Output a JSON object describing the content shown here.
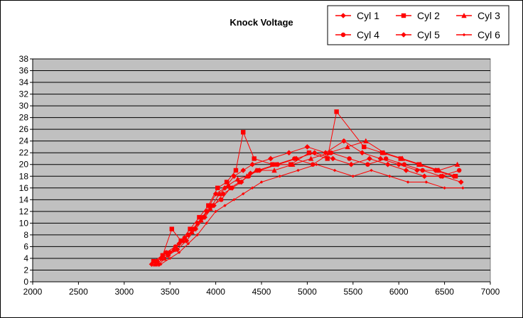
{
  "chart_data": {
    "type": "scatter",
    "title": "Knock Voltage",
    "xlabel": "",
    "ylabel": "",
    "xlim": [
      2000,
      7000
    ],
    "ylim": [
      0,
      38
    ],
    "x_ticks": [
      2000,
      2500,
      3000,
      3500,
      4000,
      4500,
      5000,
      5500,
      6000,
      6500,
      7000
    ],
    "y_ticks": [
      0,
      2,
      4,
      6,
      8,
      10,
      12,
      14,
      16,
      18,
      20,
      22,
      24,
      26,
      28,
      30,
      32,
      34,
      36,
      38
    ],
    "grid": "horizontal",
    "legend_position": "top-right",
    "plot_background": "#c0c0c0",
    "series": [
      {
        "name": "Cyl 1",
        "marker": "diamond",
        "color": "#ff0000",
        "x": [
          3300,
          3400,
          3500,
          3600,
          3700,
          3800,
          3900,
          4000,
          4100,
          4200,
          4300,
          4400,
          4600,
          4800,
          5000,
          5200,
          5400,
          5600,
          5800,
          6000,
          6200,
          6400,
          6600
        ],
        "y": [
          3,
          4,
          5,
          6.5,
          8,
          10,
          12,
          15,
          16,
          18,
          19,
          20,
          21,
          22,
          23,
          22,
          24,
          22,
          21,
          20,
          19,
          19,
          18
        ]
      },
      {
        "name": "Cyl 2",
        "marker": "square",
        "color": "#ff0000",
        "x": [
          3320,
          3420,
          3520,
          3620,
          3720,
          3820,
          3920,
          4020,
          4120,
          4220,
          4300,
          4420,
          4620,
          4820,
          5020,
          5220,
          5320,
          5620,
          5820,
          6020,
          6220,
          6420,
          6620
        ],
        "y": [
          3.5,
          4.5,
          9,
          7,
          9,
          11,
          13,
          16,
          17,
          19,
          25.5,
          21,
          20,
          20,
          22,
          21,
          29,
          23,
          22,
          21,
          20,
          19,
          18
        ]
      },
      {
        "name": "Cyl 3",
        "marker": "triangle",
        "color": "#ff0000",
        "x": [
          3340,
          3440,
          3540,
          3640,
          3740,
          3840,
          3940,
          4040,
          4140,
          4240,
          4340,
          4440,
          4640,
          4840,
          5040,
          5240,
          5440,
          5640,
          5840,
          6040,
          6240,
          6440,
          6640
        ],
        "y": [
          3,
          4,
          5.5,
          7,
          8.5,
          10.5,
          12.5,
          15,
          16.5,
          17.5,
          18,
          19,
          19,
          20,
          21,
          22,
          23,
          24,
          22,
          21,
          20,
          19,
          20
        ]
      },
      {
        "name": "Cyl 4",
        "marker": "hexagon",
        "color": "#ff0000",
        "x": [
          3360,
          3460,
          3560,
          3660,
          3760,
          3860,
          3960,
          4060,
          4160,
          4260,
          4360,
          4460,
          4660,
          4860,
          5060,
          5260,
          5460,
          5660,
          5860,
          6060,
          6260,
          6460,
          6660
        ],
        "y": [
          3.5,
          5,
          6,
          7.5,
          9,
          11,
          13,
          14,
          16,
          17,
          18,
          19,
          20,
          21,
          20,
          22,
          21,
          20,
          21,
          20,
          19,
          18,
          19
        ]
      },
      {
        "name": "Cyl 5",
        "marker": "diamond",
        "color": "#ff0000",
        "x": [
          3380,
          3480,
          3580,
          3680,
          3780,
          3880,
          3980,
          4080,
          4180,
          4280,
          4380,
          4480,
          4680,
          4880,
          5080,
          5280,
          5480,
          5680,
          5880,
          6080,
          6280,
          6480,
          6680
        ],
        "y": [
          3,
          4.5,
          5.5,
          7,
          9,
          11,
          13,
          15,
          16,
          17,
          18.5,
          19,
          20,
          21,
          22,
          21,
          20,
          21,
          20,
          19,
          18,
          18,
          17
        ]
      },
      {
        "name": "Cyl 6",
        "marker": "small-diamond",
        "color": "#ff0000",
        "x": [
          3400,
          3500,
          3600,
          3700,
          3800,
          3900,
          4000,
          4100,
          4200,
          4300,
          4400,
          4500,
          4700,
          4900,
          5100,
          5300,
          5500,
          5700,
          5900,
          6100,
          6300,
          6500,
          6700
        ],
        "y": [
          3,
          4,
          5,
          6.5,
          8,
          10,
          12,
          13,
          14,
          15,
          16,
          17,
          18,
          19,
          20,
          19,
          18,
          19,
          18,
          17,
          17,
          16,
          16
        ]
      }
    ]
  }
}
